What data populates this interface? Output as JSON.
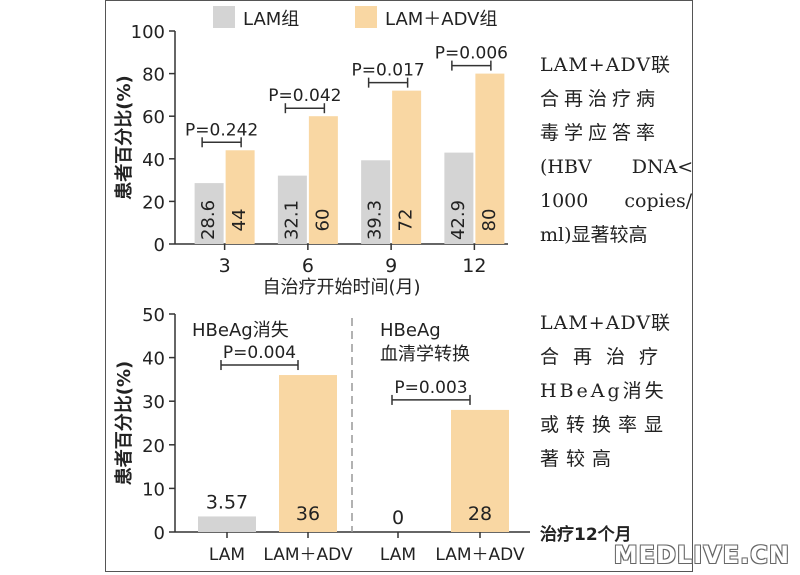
{
  "chart_data": [
    {
      "type": "bar",
      "legend": [
        {
          "name": "LAM组",
          "color": "#d4d4d4"
        },
        {
          "name": "LAM＋ADV组",
          "color": "#f9d7a3"
        }
      ],
      "legend_placement": "top",
      "xlabel": "自治疗开始时间(月)",
      "ylabel": "患者百分比(%)",
      "ylim": [
        0,
        100
      ],
      "yticks": [
        0,
        20,
        40,
        60,
        80,
        100
      ],
      "categories": [
        "3",
        "6",
        "9",
        "12"
      ],
      "series": [
        {
          "name": "LAM组",
          "values": [
            28.6,
            32.1,
            39.3,
            42.9
          ],
          "labels": [
            "28.6",
            "32.1",
            "39.3",
            "42.9"
          ],
          "color": "#d4d4d4"
        },
        {
          "name": "LAM＋ADV组",
          "values": [
            44,
            60,
            72,
            80
          ],
          "labels": [
            "44",
            "60",
            "72",
            "80"
          ],
          "color": "#f9d7a3"
        }
      ],
      "annotations": [
        "P=0.242",
        "P=0.042",
        "P=0.017",
        "P=0.006"
      ],
      "side_note": [
        "LAM+ADV联",
        "合再治疗病",
        "毒学应答率",
        "(HBV DNA<",
        "1000 copies/",
        "ml)显著较高"
      ]
    },
    {
      "type": "bar",
      "ylabel": "患者百分比(%)",
      "ylim": [
        0,
        50
      ],
      "yticks": [
        0,
        10,
        20,
        30,
        40,
        50
      ],
      "groups": [
        {
          "title": [
            "HBeAg消失"
          ],
          "categories": [
            "LAM",
            "LAM＋ADV"
          ],
          "values": [
            3.57,
            36
          ],
          "labels": [
            "3.57",
            "36"
          ],
          "colors": [
            "#d4d4d4",
            "#f9d7a3"
          ],
          "p_value": "P=0.004"
        },
        {
          "title": [
            "HBeAg",
            "血清学转换"
          ],
          "categories": [
            "LAM",
            "LAM＋ADV"
          ],
          "values": [
            0,
            28
          ],
          "labels": [
            "0",
            "28"
          ],
          "colors": [
            "#d4d4d4",
            "#f9d7a3"
          ],
          "p_value": "P=0.003"
        }
      ],
      "side_note": [
        "LAM+ADV联",
        "合再治疗",
        "HBeAg消失",
        "或转换率显",
        "著较高"
      ],
      "footnote": "治疗12个月"
    }
  ],
  "watermark": "MEDLIVE.CN"
}
